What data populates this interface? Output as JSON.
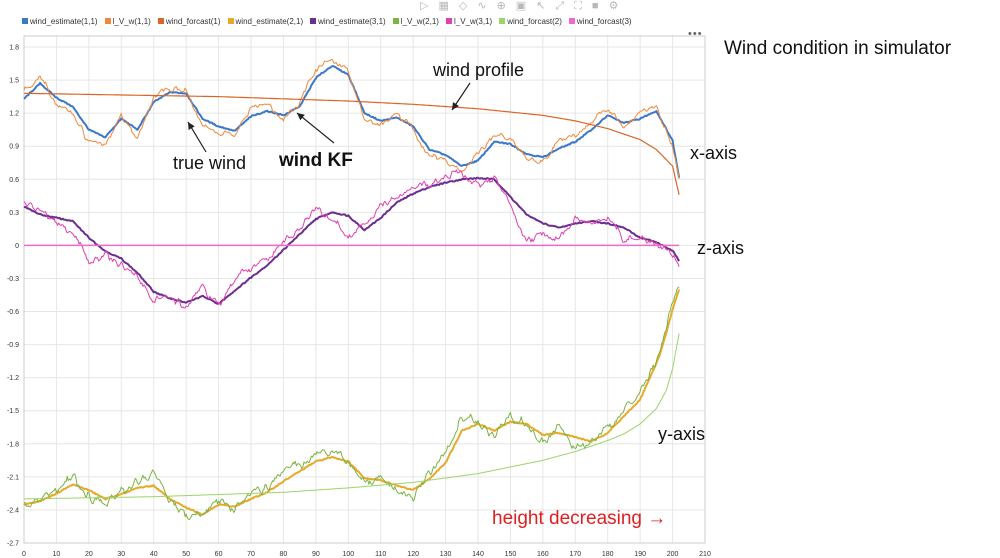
{
  "toolbar": {
    "icons": [
      "play-icon",
      "grid-icon",
      "eraser-icon",
      "line-tool-icon",
      "zoom-icon",
      "fit-icon",
      "cursor-icon",
      "expand-icon",
      "fullscreen-icon",
      "camera-icon",
      "gear-icon"
    ]
  },
  "more_menu": "•••",
  "colors": {
    "grid": "#e6e6e6",
    "axis_text": "#333333",
    "annotation_red": "#e02020"
  },
  "chart_data": {
    "type": "line",
    "title": "",
    "xlabel": "",
    "ylabel": "",
    "xlim": [
      0,
      210
    ],
    "ylim": [
      -2.7,
      1.9
    ],
    "grid": true,
    "legend_position": "top-left",
    "x_ticks": [
      "0",
      "10",
      "20",
      "30",
      "40",
      "50",
      "60",
      "70",
      "80",
      "90",
      "100",
      "110",
      "120",
      "130",
      "140",
      "150",
      "160",
      "170",
      "180",
      "190",
      "200",
      "210"
    ],
    "y_ticks": [
      "1.8",
      "1.5",
      "1.2",
      "0.9",
      "0.6",
      "0.3",
      "0",
      "-0.3",
      "-0.6",
      "-0.9",
      "-1.2",
      "-1.5",
      "-1.8",
      "-2.1",
      "-2.4",
      "-2.7"
    ],
    "series": [
      {
        "name": "wind_estimate(1,1)",
        "color": "#3a78c8",
        "width": 2.0,
        "noise": 0.0,
        "x": [
          0,
          5,
          10,
          15,
          20,
          25,
          30,
          35,
          40,
          45,
          50,
          55,
          60,
          65,
          70,
          75,
          80,
          85,
          90,
          95,
          100,
          105,
          110,
          115,
          120,
          125,
          130,
          135,
          140,
          145,
          150,
          155,
          160,
          165,
          170,
          175,
          180,
          185,
          190,
          195,
          200,
          202
        ],
        "y": [
          1.33,
          1.47,
          1.34,
          1.26,
          1.05,
          0.98,
          1.15,
          1.05,
          1.3,
          1.39,
          1.38,
          1.15,
          1.08,
          1.04,
          1.17,
          1.22,
          1.18,
          1.26,
          1.52,
          1.63,
          1.55,
          1.2,
          1.13,
          1.16,
          1.08,
          0.87,
          0.82,
          0.72,
          0.77,
          0.94,
          0.92,
          0.83,
          0.8,
          0.88,
          0.94,
          1.05,
          1.18,
          1.11,
          1.15,
          1.22,
          0.95,
          0.62
        ]
      },
      {
        "name": "l_V_w(1,1)",
        "color": "#f0883a",
        "width": 1.0,
        "noise": 0.04,
        "x": [
          0,
          5,
          10,
          15,
          20,
          25,
          30,
          35,
          40,
          45,
          50,
          55,
          60,
          65,
          70,
          75,
          80,
          85,
          90,
          95,
          100,
          105,
          110,
          115,
          120,
          125,
          130,
          135,
          140,
          145,
          150,
          155,
          160,
          165,
          170,
          175,
          180,
          185,
          190,
          195,
          200,
          202
        ],
        "y": [
          1.4,
          1.52,
          1.3,
          1.2,
          0.93,
          0.9,
          1.18,
          0.97,
          1.35,
          1.42,
          1.41,
          1.1,
          1.02,
          1.0,
          1.25,
          1.3,
          1.15,
          1.3,
          1.6,
          1.68,
          1.58,
          1.15,
          1.08,
          1.2,
          1.05,
          0.8,
          0.77,
          0.68,
          0.82,
          1.0,
          0.98,
          0.78,
          0.76,
          0.95,
          1.0,
          1.12,
          1.25,
          1.05,
          1.2,
          1.25,
          0.9,
          0.6
        ]
      },
      {
        "name": "wind_forcast(1)",
        "color": "#d8662a",
        "width": 1.2,
        "noise": 0.0,
        "x": [
          0,
          20,
          40,
          60,
          80,
          100,
          120,
          140,
          160,
          170,
          180,
          190,
          195,
          200,
          202
        ],
        "y": [
          1.38,
          1.37,
          1.36,
          1.35,
          1.33,
          1.31,
          1.28,
          1.24,
          1.18,
          1.13,
          1.06,
          0.96,
          0.87,
          0.72,
          0.46
        ]
      },
      {
        "name": "wind_estimate(2,1)",
        "color": "#e6a92a",
        "width": 2.0,
        "noise": 0.0,
        "x": [
          0,
          5,
          10,
          15,
          20,
          25,
          30,
          35,
          40,
          45,
          50,
          55,
          60,
          65,
          70,
          75,
          80,
          85,
          90,
          95,
          100,
          105,
          110,
          115,
          120,
          125,
          130,
          135,
          140,
          145,
          150,
          155,
          160,
          165,
          170,
          175,
          180,
          185,
          190,
          193,
          196,
          198,
          200,
          202
        ],
        "y": [
          -2.35,
          -2.32,
          -2.25,
          -2.17,
          -2.22,
          -2.3,
          -2.26,
          -2.2,
          -2.18,
          -2.3,
          -2.38,
          -2.44,
          -2.35,
          -2.37,
          -2.3,
          -2.24,
          -2.14,
          -2.05,
          -1.96,
          -1.92,
          -1.96,
          -2.11,
          -2.13,
          -2.18,
          -2.22,
          -2.12,
          -1.97,
          -1.68,
          -1.62,
          -1.68,
          -1.6,
          -1.62,
          -1.72,
          -1.7,
          -1.74,
          -1.78,
          -1.7,
          -1.55,
          -1.4,
          -1.2,
          -1.0,
          -0.8,
          -0.58,
          -0.4
        ]
      },
      {
        "name": "wind_estimate(3,1)",
        "color": "#6b2d8f",
        "width": 2.0,
        "noise": 0.0,
        "x": [
          0,
          5,
          10,
          15,
          20,
          25,
          30,
          35,
          40,
          45,
          50,
          55,
          60,
          65,
          70,
          75,
          80,
          85,
          90,
          95,
          100,
          105,
          110,
          115,
          120,
          125,
          130,
          135,
          140,
          145,
          150,
          155,
          160,
          165,
          170,
          175,
          180,
          185,
          190,
          195,
          200,
          202
        ],
        "y": [
          0.35,
          0.28,
          0.25,
          0.22,
          0.07,
          -0.05,
          -0.12,
          -0.25,
          -0.42,
          -0.48,
          -0.52,
          -0.46,
          -0.53,
          -0.41,
          -0.29,
          -0.18,
          -0.04,
          0.1,
          0.24,
          0.3,
          0.27,
          0.14,
          0.25,
          0.39,
          0.47,
          0.53,
          0.57,
          0.6,
          0.61,
          0.6,
          0.44,
          0.28,
          0.2,
          0.16,
          0.2,
          0.22,
          0.2,
          0.16,
          0.07,
          0.03,
          -0.05,
          -0.14
        ]
      },
      {
        "name": "l_V_w(2,1)",
        "color": "#7cb342",
        "width": 1.0,
        "noise": 0.06,
        "x": [
          0,
          5,
          10,
          15,
          20,
          25,
          30,
          35,
          40,
          45,
          50,
          55,
          60,
          65,
          70,
          75,
          80,
          85,
          90,
          95,
          100,
          105,
          110,
          115,
          120,
          125,
          130,
          135,
          140,
          145,
          150,
          155,
          160,
          165,
          170,
          175,
          180,
          185,
          190,
          193,
          196,
          198,
          200,
          202
        ],
        "y": [
          -2.37,
          -2.3,
          -2.2,
          -2.1,
          -2.28,
          -2.35,
          -2.22,
          -2.15,
          -2.05,
          -2.33,
          -2.45,
          -2.46,
          -2.3,
          -2.4,
          -2.25,
          -2.2,
          -2.05,
          -1.98,
          -1.92,
          -1.85,
          -1.98,
          -2.18,
          -2.1,
          -2.25,
          -2.3,
          -2.05,
          -1.9,
          -1.55,
          -1.6,
          -1.75,
          -1.55,
          -1.62,
          -1.8,
          -1.65,
          -1.85,
          -1.78,
          -1.65,
          -1.5,
          -1.3,
          -1.15,
          -0.95,
          -0.75,
          -0.5,
          -0.35
        ]
      },
      {
        "name": "l_V_w(3,1)",
        "color": "#e040b0",
        "width": 1.0,
        "noise": 0.05,
        "x": [
          0,
          5,
          10,
          15,
          20,
          25,
          30,
          35,
          40,
          45,
          50,
          55,
          60,
          65,
          70,
          75,
          80,
          85,
          90,
          95,
          100,
          105,
          110,
          115,
          120,
          125,
          130,
          135,
          140,
          145,
          150,
          155,
          160,
          165,
          170,
          175,
          180,
          185,
          190,
          195,
          200,
          202
        ],
        "y": [
          0.38,
          0.3,
          0.2,
          0.12,
          -0.15,
          -0.08,
          -0.18,
          -0.3,
          -0.5,
          -0.45,
          -0.58,
          -0.38,
          -0.56,
          -0.3,
          -0.2,
          -0.12,
          0.05,
          0.15,
          0.35,
          0.25,
          0.05,
          0.2,
          0.35,
          0.45,
          0.52,
          0.55,
          0.62,
          0.66,
          0.55,
          0.62,
          0.35,
          0.05,
          0.12,
          0.05,
          0.25,
          0.18,
          0.25,
          0.05,
          0.05,
          0.02,
          -0.1,
          -0.2
        ]
      },
      {
        "name": "wind_forcast(2)",
        "color": "#9ad46a",
        "width": 1.0,
        "noise": 0.0,
        "x": [
          0,
          20,
          40,
          60,
          80,
          100,
          120,
          140,
          160,
          170,
          180,
          185,
          190,
          195,
          198,
          200,
          202
        ],
        "y": [
          -2.3,
          -2.29,
          -2.28,
          -2.26,
          -2.24,
          -2.2,
          -2.15,
          -2.07,
          -1.95,
          -1.87,
          -1.77,
          -1.71,
          -1.62,
          -1.48,
          -1.32,
          -1.12,
          -0.8
        ]
      },
      {
        "name": "wind_forcast(3)",
        "color": "#f06acb",
        "width": 1.5,
        "noise": 0.0,
        "x": [
          0,
          100,
          200,
          202
        ],
        "y": [
          0.0,
          0.0,
          0.0,
          0.0
        ]
      }
    ]
  },
  "annotations": {
    "right_title": "Wind condition in simulator",
    "wind_profile": "wind profile",
    "true_wind": "true wind",
    "wind_kf": "wind KF",
    "x_axis": "x-axis",
    "z_axis": "z-axis",
    "y_axis": "y-axis",
    "height_decreasing": "height decreasing →"
  }
}
